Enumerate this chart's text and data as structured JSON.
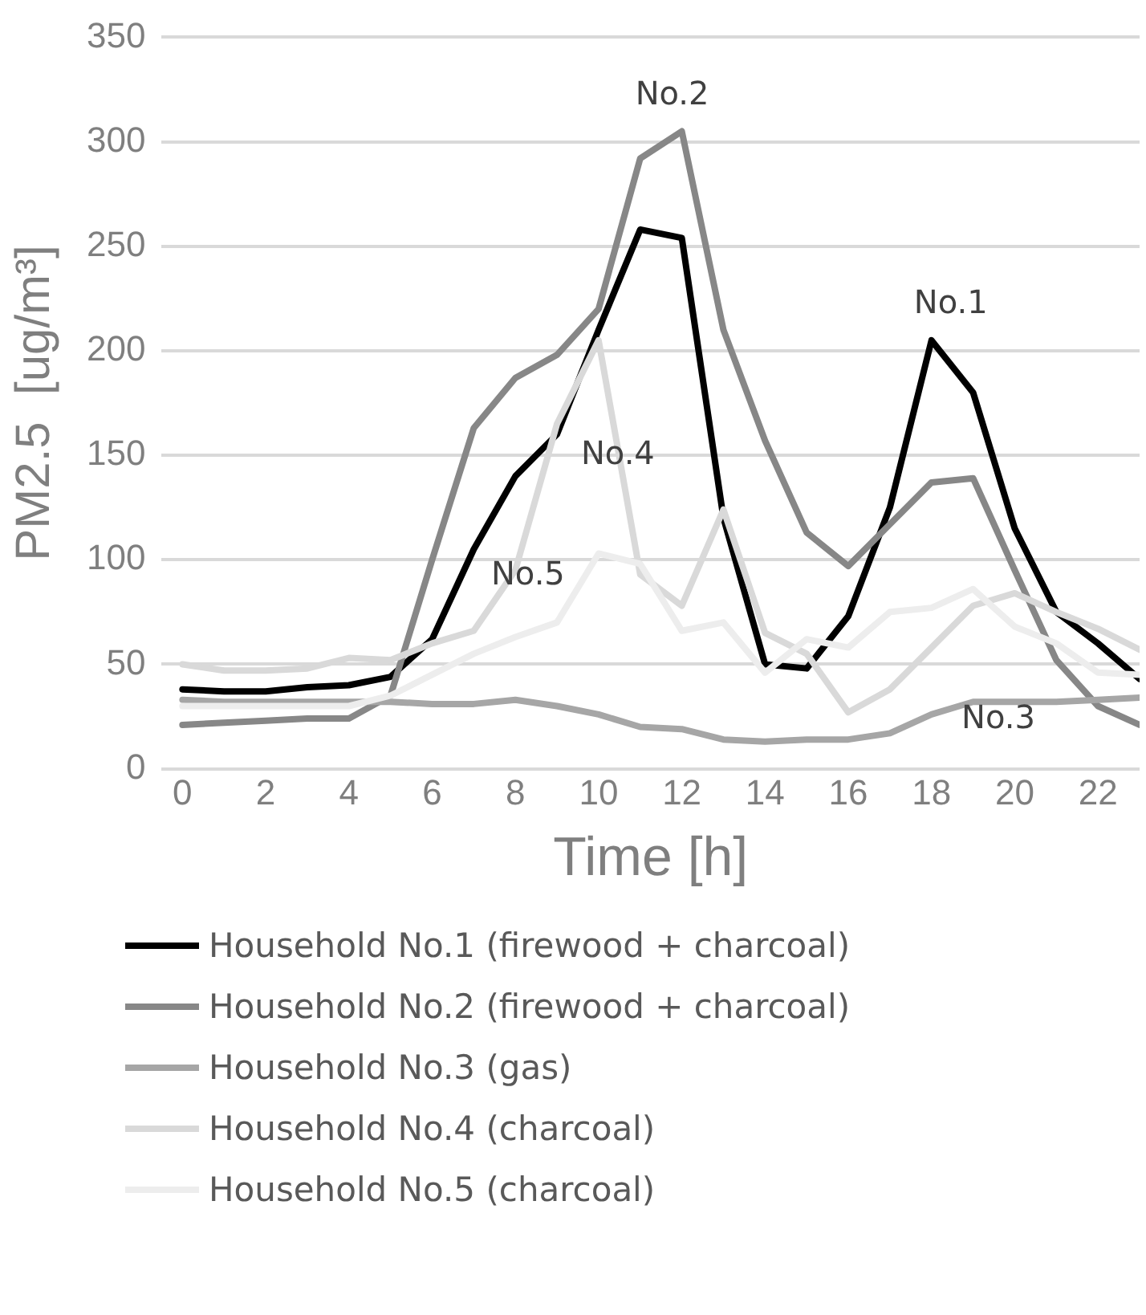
{
  "chart_data": {
    "type": "line",
    "xlabel": "Time [h]",
    "ylabel": "PM2.5  [ug/m³]",
    "x": [
      0,
      1,
      2,
      3,
      4,
      5,
      6,
      7,
      8,
      9,
      10,
      11,
      12,
      13,
      14,
      15,
      16,
      17,
      18,
      19,
      20,
      21,
      22,
      23
    ],
    "series": [
      {
        "name": "Household No.1 (firewood + charcoal)",
        "color": "#000000",
        "values": [
          38,
          37,
          37,
          39,
          40,
          44,
          62,
          105,
          140,
          160,
          210,
          258,
          254,
          120,
          50,
          48,
          73,
          125,
          205,
          180,
          115,
          75,
          60,
          43
        ]
      },
      {
        "name": "Household No.2 (firewood + charcoal)",
        "color": "#878787",
        "values": [
          21,
          22,
          23,
          24,
          24,
          35,
          100,
          163,
          187,
          198,
          220,
          292,
          305,
          210,
          157,
          113,
          97,
          117,
          137,
          139,
          95,
          52,
          30,
          21
        ]
      },
      {
        "name": "Household No.3 (gas)",
        "color": "#a6a6a6",
        "values": [
          33,
          32,
          32,
          32,
          32,
          32,
          31,
          31,
          33,
          30,
          26,
          20,
          19,
          14,
          13,
          14,
          14,
          17,
          26,
          32,
          32,
          32,
          33,
          34
        ]
      },
      {
        "name": "Household No.4 (charcoal)",
        "color": "#d9d9d9",
        "values": [
          50,
          47,
          47,
          48,
          53,
          52,
          60,
          66,
          95,
          165,
          205,
          93,
          78,
          124,
          65,
          55,
          27,
          38,
          58,
          78,
          84,
          75,
          67,
          57
        ]
      },
      {
        "name": "Household No.5 (charcoal)",
        "color": "#ededed",
        "values": [
          30,
          30,
          30,
          30,
          30,
          35,
          45,
          55,
          63,
          70,
          103,
          98,
          66,
          70,
          46,
          62,
          58,
          75,
          77,
          86,
          68,
          60,
          46,
          45
        ]
      }
    ],
    "xlim": [
      -0.5,
      23
    ],
    "xticks": [
      0,
      2,
      4,
      6,
      8,
      10,
      12,
      14,
      16,
      18,
      20,
      22
    ],
    "ylim": [
      0,
      350
    ],
    "yticks": [
      0,
      50,
      100,
      150,
      200,
      250,
      300,
      350
    ],
    "grid": "y",
    "legend": "bottom",
    "marker": "none",
    "line_style": "solid",
    "annotations": [
      "No.1",
      "No.2",
      "No.3",
      "No.4",
      "No.5"
    ]
  }
}
